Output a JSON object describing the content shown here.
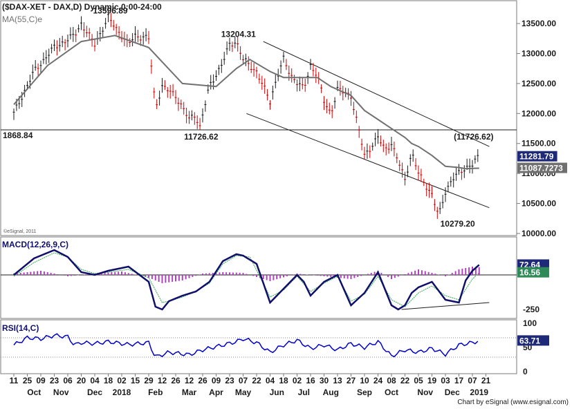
{
  "chart_data": {
    "type": "line",
    "title": "($DAX-XET - DAX,D) Dynamic,0:00-24:00",
    "footer": "Chart by eSignal (www.esignal.com)",
    "x_axis": {
      "day_labels": [
        "11",
        "25",
        "09",
        "23",
        "06",
        "20",
        "04",
        "18",
        "02",
        "15",
        "29",
        "12",
        "26",
        "12",
        "26",
        "09",
        "23",
        "07",
        "22",
        "04",
        "18",
        "02",
        "16",
        "30",
        "13",
        "27",
        "10",
        "24",
        "08",
        "22",
        "05",
        "19",
        "03",
        "17",
        "07",
        "21"
      ],
      "month_labels": [
        "Oct",
        "Nov",
        "Dec",
        "2018",
        "Feb",
        "Mar",
        "Apr",
        "May",
        "Jun",
        "Jul",
        "Aug",
        "Sep",
        "Oct",
        "Nov",
        "Dec",
        "2019"
      ]
    },
    "panels": [
      {
        "name": "price",
        "legend": [
          "($DAX-XET - DAX,D) Dynamic,0:00-24:00",
          "MA(55,C)e"
        ],
        "watermark": "©eSignal, 2011",
        "ylim": [
          10000,
          13800
        ],
        "ticks": [
          {
            "v": 13500,
            "label": "13500.00"
          },
          {
            "v": 13000,
            "label": "13000.00"
          },
          {
            "v": 12500,
            "label": "12500.00"
          },
          {
            "v": 12000,
            "label": "12000.00"
          },
          {
            "v": 11500,
            "label": "11500.00"
          },
          {
            "v": 11000,
            "label": "11000.00"
          },
          {
            "v": 10500,
            "label": "10500.00"
          },
          {
            "v": 10000,
            "label": "10000.00"
          }
        ],
        "horizontal_line": {
          "value": 11726.62,
          "label": "1868.84"
        },
        "annotations": [
          {
            "text": "13596.89",
            "x": 28,
            "y": 13596.89
          },
          {
            "text": "13204.31",
            "x": 66,
            "y": 13204.31
          },
          {
            "text": "11726.62",
            "x": 55,
            "y": 11726.62
          },
          {
            "text": "(11726.62)",
            "x": 135,
            "y": 11726.62
          },
          {
            "text": "10279.20",
            "x": 131,
            "y": 10279.2
          }
        ],
        "series": [
          {
            "kind": "price",
            "x": [
              0,
              6,
              12,
              18,
              20,
              24,
              28,
              34,
              36,
              40,
              42,
              44,
              48,
              52,
              54,
              55,
              58,
              62,
              64,
              66,
              68,
              72,
              76,
              78,
              80,
              82,
              86,
              88,
              90,
              92,
              94,
              96,
              100,
              104,
              108,
              110,
              112,
              114,
              116,
              118,
              120,
              124,
              126,
              128,
              130,
              132,
              134,
              136,
              138
            ],
            "y": [
              12000,
              12700,
              13100,
              13300,
              13500,
              13150,
              13596.89,
              13150,
              13300,
              13250,
              12100,
              12450,
              12300,
              11900,
              12000,
              11726.62,
              12450,
              12850,
              13150,
              13204.31,
              12900,
              12700,
              12200,
              12600,
              12900,
              12650,
              12400,
              12800,
              12650,
              12200,
              12000,
              12400,
              12300,
              11300,
              11600,
              11400,
              11500,
              11200,
              10900,
              11350,
              11000,
              10650,
              10279.2,
              10700,
              10900,
              11000,
              11100,
              11150,
              11281.79
            ]
          },
          {
            "kind": "ma",
            "name": "MA(55,C)e",
            "x": [
              0,
              10,
              20,
              30,
              40,
              50,
              60,
              66,
              70,
              76,
              80,
              86,
              90,
              94,
              100,
              104,
              108,
              112,
              116,
              118,
              120,
              124,
              128,
              132,
              134,
              136,
              138
            ],
            "y": [
              12150,
              12800,
              13200,
              13300,
              13100,
              12500,
              12450,
              12750,
              12900,
              12700,
              12600,
              12600,
              12600,
              12450,
              12300,
              12050,
              11900,
              11750,
              11600,
              11500,
              11450,
              11300,
              11120,
              11100,
              11080,
              11085,
              11087.7273
            ]
          }
        ],
        "trendlines": [
          {
            "x": [
              74,
              141
            ],
            "y": [
              13200,
              11450
            ]
          },
          {
            "x": [
              69,
              141
            ],
            "y": [
              12000,
              10430
            ]
          }
        ],
        "value_tags": [
          {
            "text": "11281.79",
            "value": 11281.79,
            "style": "dark"
          },
          {
            "text": "11087.7273",
            "value": 11087.7273,
            "style": "gray"
          }
        ]
      },
      {
        "name": "macd",
        "legend": "MACD(12,26,9,C)",
        "ylim": [
          -300,
          250
        ],
        "ticks": [
          {
            "v": -250,
            "label": "-250"
          }
        ],
        "zero_line": 0,
        "series": [
          {
            "kind": "macd",
            "x": [
              0,
              6,
              12,
              16,
              20,
              24,
              28,
              34,
              40,
              42,
              44,
              46,
              50,
              54,
              58,
              62,
              66,
              68,
              72,
              76,
              80,
              84,
              86,
              88,
              92,
              96,
              100,
              104,
              108,
              112,
              114,
              116,
              118,
              120,
              124,
              128,
              132,
              134,
              136,
              138
            ],
            "y": [
              0,
              120,
              180,
              130,
              20,
              0,
              30,
              60,
              -50,
              -230,
              -250,
              -190,
              -150,
              -120,
              -50,
              100,
              150,
              140,
              80,
              -200,
              -100,
              0,
              -50,
              -150,
              -50,
              0,
              -220,
              -130,
              20,
              -220,
              -250,
              -220,
              -130,
              -90,
              -50,
              -180,
              -200,
              -40,
              30,
              72.64
            ]
          },
          {
            "kind": "signal",
            "x": [
              0,
              6,
              12,
              16,
              20,
              24,
              28,
              34,
              40,
              44,
              46,
              50,
              54,
              58,
              62,
              66,
              70,
              76,
              80,
              84,
              88,
              92,
              96,
              100,
              104,
              108,
              112,
              116,
              120,
              124,
              128,
              132,
              136,
              138
            ],
            "y": [
              -10,
              90,
              160,
              130,
              40,
              10,
              20,
              40,
              -20,
              -200,
              -190,
              -160,
              -120,
              -60,
              80,
              140,
              130,
              -160,
              -110,
              -10,
              -120,
              -60,
              -10,
              -190,
              -140,
              -10,
              -180,
              -230,
              -130,
              -80,
              -150,
              -180,
              -30,
              16.56
            ]
          },
          {
            "kind": "histogram",
            "x": [
              0,
              8,
              16,
              24,
              32,
              40,
              44,
              50,
              56,
              62,
              68,
              76,
              84,
              92,
              100,
              108,
              112,
              120,
              128,
              132,
              136,
              138
            ],
            "y": [
              10,
              30,
              -10,
              10,
              25,
              -20,
              -60,
              -40,
              10,
              20,
              15,
              -45,
              10,
              -10,
              -30,
              30,
              -30,
              40,
              -10,
              40,
              60,
              56
            ]
          }
        ],
        "trendlines": [
          {
            "x": [
              115,
              141
            ],
            "y": [
              -250,
              -200
            ]
          }
        ],
        "value_tags": [
          {
            "text": "72.64",
            "value": 72.64,
            "style": "dark"
          },
          {
            "text": "16.56",
            "value": 16.56,
            "style": "green"
          }
        ]
      },
      {
        "name": "rsi",
        "legend": "RSI(14,C)",
        "ylim": [
          0,
          100
        ],
        "ticks": [
          {
            "v": 100,
            "label": "100"
          },
          {
            "v": 50,
            "label": "50"
          },
          {
            "v": 0,
            "label": "0"
          }
        ],
        "guide_lines": [
          70,
          30
        ],
        "series": [
          {
            "kind": "rsi",
            "x": [
              0,
              4,
              8,
              12,
              16,
              18,
              20,
              24,
              28,
              34,
              40,
              42,
              46,
              52,
              56,
              62,
              66,
              68,
              72,
              76,
              80,
              84,
              88,
              92,
              96,
              100,
              104,
              108,
              112,
              116,
              120,
              124,
              128,
              132,
              136,
              138
            ],
            "y": [
              55,
              70,
              68,
              75,
              72,
              55,
              60,
              58,
              62,
              56,
              60,
              30,
              40,
              35,
              45,
              55,
              62,
              68,
              60,
              40,
              55,
              65,
              48,
              55,
              45,
              58,
              50,
              62,
              32,
              45,
              40,
              48,
              36,
              55,
              60,
              63.71
            ]
          }
        ],
        "value_tags": [
          {
            "text": "63.71",
            "value": 63.71,
            "style": "dark"
          }
        ]
      }
    ],
    "colors": {
      "price": "#1a1a1a",
      "price_down": "#cc0000",
      "ma": "#707070",
      "macd": "#10106b",
      "signal": "#2ea64a",
      "histogram": "#b040c0",
      "rsi": "#0000cc",
      "tag_dark": "#1e2a78",
      "tag_gray": "#707070",
      "tag_green": "#2e8b57"
    }
  }
}
